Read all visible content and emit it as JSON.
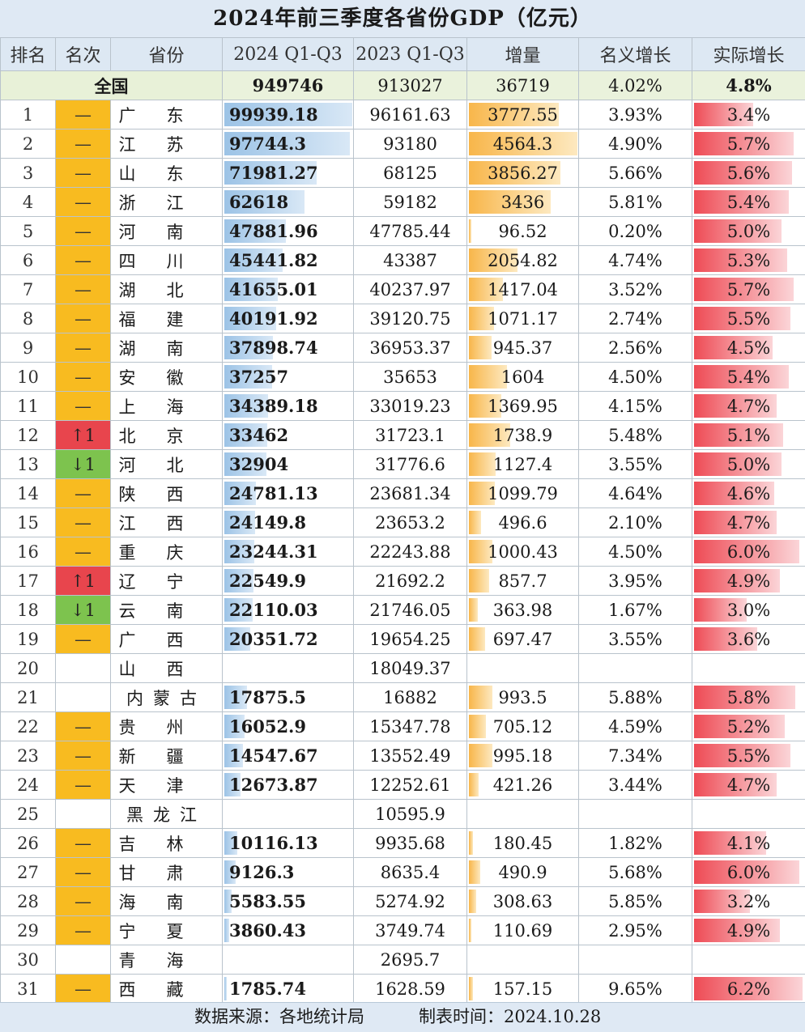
{
  "title": "2024年前三季度各省份GDP（亿元）",
  "headers": [
    "排名",
    "名次",
    "省份",
    "2024 Q1-Q3",
    "2023 Q1-Q3",
    "增量",
    "名义增长",
    "实际增长"
  ],
  "total": {
    "label": "全国",
    "q2024": "949746",
    "q2023": "913027",
    "increase": "36719",
    "nominal": "4.02%",
    "real": "4.8%"
  },
  "rows": [
    {
      "rank": "1",
      "change": "keep",
      "change_label": "—",
      "province": "广东",
      "q2024": "99939.18",
      "q2023": "96161.63",
      "increase": "3777.55",
      "nominal": "3.93%",
      "real": "3.4%"
    },
    {
      "rank": "2",
      "change": "keep",
      "change_label": "—",
      "province": "江苏",
      "q2024": "97744.3",
      "q2023": "93180",
      "increase": "4564.3",
      "nominal": "4.90%",
      "real": "5.7%"
    },
    {
      "rank": "3",
      "change": "keep",
      "change_label": "—",
      "province": "山东",
      "q2024": "71981.27",
      "q2023": "68125",
      "increase": "3856.27",
      "nominal": "5.66%",
      "real": "5.6%"
    },
    {
      "rank": "4",
      "change": "keep",
      "change_label": "—",
      "province": "浙江",
      "q2024": "62618",
      "q2023": "59182",
      "increase": "3436",
      "nominal": "5.81%",
      "real": "5.4%"
    },
    {
      "rank": "5",
      "change": "keep",
      "change_label": "—",
      "province": "河南",
      "q2024": "47881.96",
      "q2023": "47785.44",
      "increase": "96.52",
      "nominal": "0.20%",
      "real": "5.0%"
    },
    {
      "rank": "6",
      "change": "keep",
      "change_label": "—",
      "province": "四川",
      "q2024": "45441.82",
      "q2023": "43387",
      "increase": "2054.82",
      "nominal": "4.74%",
      "real": "5.3%"
    },
    {
      "rank": "7",
      "change": "keep",
      "change_label": "—",
      "province": "湖北",
      "q2024": "41655.01",
      "q2023": "40237.97",
      "increase": "1417.04",
      "nominal": "3.52%",
      "real": "5.7%"
    },
    {
      "rank": "8",
      "change": "keep",
      "change_label": "—",
      "province": "福建",
      "q2024": "40191.92",
      "q2023": "39120.75",
      "increase": "1071.17",
      "nominal": "2.74%",
      "real": "5.5%"
    },
    {
      "rank": "9",
      "change": "keep",
      "change_label": "—",
      "province": "湖南",
      "q2024": "37898.74",
      "q2023": "36953.37",
      "increase": "945.37",
      "nominal": "2.56%",
      "real": "4.5%"
    },
    {
      "rank": "10",
      "change": "keep",
      "change_label": "—",
      "province": "安徽",
      "q2024": "37257",
      "q2023": "35653",
      "increase": "1604",
      "nominal": "4.50%",
      "real": "5.4%"
    },
    {
      "rank": "11",
      "change": "keep",
      "change_label": "—",
      "province": "上海",
      "q2024": "34389.18",
      "q2023": "33019.23",
      "increase": "1369.95",
      "nominal": "4.15%",
      "real": "4.7%"
    },
    {
      "rank": "12",
      "change": "up",
      "change_label": "↑1",
      "province": "北京",
      "q2024": "33462",
      "q2023": "31723.1",
      "increase": "1738.9",
      "nominal": "5.48%",
      "real": "5.1%"
    },
    {
      "rank": "13",
      "change": "down",
      "change_label": "↓1",
      "province": "河北",
      "q2024": "32904",
      "q2023": "31776.6",
      "increase": "1127.4",
      "nominal": "3.55%",
      "real": "5.0%"
    },
    {
      "rank": "14",
      "change": "keep",
      "change_label": "—",
      "province": "陕西",
      "q2024": "24781.13",
      "q2023": "23681.34",
      "increase": "1099.79",
      "nominal": "4.64%",
      "real": "4.6%"
    },
    {
      "rank": "15",
      "change": "keep",
      "change_label": "—",
      "province": "江西",
      "q2024": "24149.8",
      "q2023": "23653.2",
      "increase": "496.6",
      "nominal": "2.10%",
      "real": "4.7%"
    },
    {
      "rank": "16",
      "change": "keep",
      "change_label": "—",
      "province": "重庆",
      "q2024": "23244.31",
      "q2023": "22243.88",
      "increase": "1000.43",
      "nominal": "4.50%",
      "real": "6.0%"
    },
    {
      "rank": "17",
      "change": "up",
      "change_label": "↑1",
      "province": "辽宁",
      "q2024": "22549.9",
      "q2023": "21692.2",
      "increase": "857.7",
      "nominal": "3.95%",
      "real": "4.9%"
    },
    {
      "rank": "18",
      "change": "down",
      "change_label": "↓1",
      "province": "云南",
      "q2024": "22110.03",
      "q2023": "21746.05",
      "increase": "363.98",
      "nominal": "1.67%",
      "real": "3.0%"
    },
    {
      "rank": "19",
      "change": "keep",
      "change_label": "—",
      "province": "广西",
      "q2024": "20351.72",
      "q2023": "19654.25",
      "increase": "697.47",
      "nominal": "3.55%",
      "real": "3.6%"
    },
    {
      "rank": "20",
      "change": "none",
      "change_label": "",
      "province": "山西",
      "q2024": "",
      "q2023": "18049.37",
      "increase": "",
      "nominal": "",
      "real": ""
    },
    {
      "rank": "21",
      "change": "none",
      "change_label": "",
      "province": "内蒙古",
      "q2024": "17875.5",
      "q2023": "16882",
      "increase": "993.5",
      "nominal": "5.88%",
      "real": "5.8%"
    },
    {
      "rank": "22",
      "change": "keep",
      "change_label": "—",
      "province": "贵州",
      "q2024": "16052.9",
      "q2023": "15347.78",
      "increase": "705.12",
      "nominal": "4.59%",
      "real": "5.2%"
    },
    {
      "rank": "23",
      "change": "keep",
      "change_label": "—",
      "province": "新疆",
      "q2024": "14547.67",
      "q2023": "13552.49",
      "increase": "995.18",
      "nominal": "7.34%",
      "real": "5.5%"
    },
    {
      "rank": "24",
      "change": "keep",
      "change_label": "—",
      "province": "天津",
      "q2024": "12673.87",
      "q2023": "12252.61",
      "increase": "421.26",
      "nominal": "3.44%",
      "real": "4.7%"
    },
    {
      "rank": "25",
      "change": "none",
      "change_label": "",
      "province": "黑龙江",
      "q2024": "",
      "q2023": "10595.9",
      "increase": "",
      "nominal": "",
      "real": ""
    },
    {
      "rank": "26",
      "change": "keep",
      "change_label": "—",
      "province": "吉林",
      "q2024": "10116.13",
      "q2023": "9935.68",
      "increase": "180.45",
      "nominal": "1.82%",
      "real": "4.1%"
    },
    {
      "rank": "27",
      "change": "keep",
      "change_label": "—",
      "province": "甘肃",
      "q2024": "9126.3",
      "q2023": "8635.4",
      "increase": "490.9",
      "nominal": "5.68%",
      "real": "6.0%"
    },
    {
      "rank": "28",
      "change": "keep",
      "change_label": "—",
      "province": "海南",
      "q2024": "5583.55",
      "q2023": "5274.92",
      "increase": "308.63",
      "nominal": "5.85%",
      "real": "3.2%"
    },
    {
      "rank": "29",
      "change": "keep",
      "change_label": "—",
      "province": "宁夏",
      "q2024": "3860.43",
      "q2023": "3749.74",
      "increase": "110.69",
      "nominal": "2.95%",
      "real": "4.9%"
    },
    {
      "rank": "30",
      "change": "none",
      "change_label": "",
      "province": "青海",
      "q2024": "",
      "q2023": "2695.7",
      "increase": "",
      "nominal": "",
      "real": ""
    },
    {
      "rank": "31",
      "change": "keep",
      "change_label": "—",
      "province": "西藏",
      "q2024": "1785.74",
      "q2023": "1628.59",
      "increase": "157.15",
      "nominal": "9.65%",
      "real": "6.2%"
    }
  ],
  "footer": {
    "source": "数据来源：各地统计局",
    "date": "制表时间：2024.10.28"
  },
  "colors": {
    "keep": "#f8bb20",
    "up": "#e8454d",
    "down": "#7dc34e",
    "q2024_bar": "#9cc3e6",
    "increase_bar": "#f8b64a",
    "real_bar": "#ee4b55"
  }
}
